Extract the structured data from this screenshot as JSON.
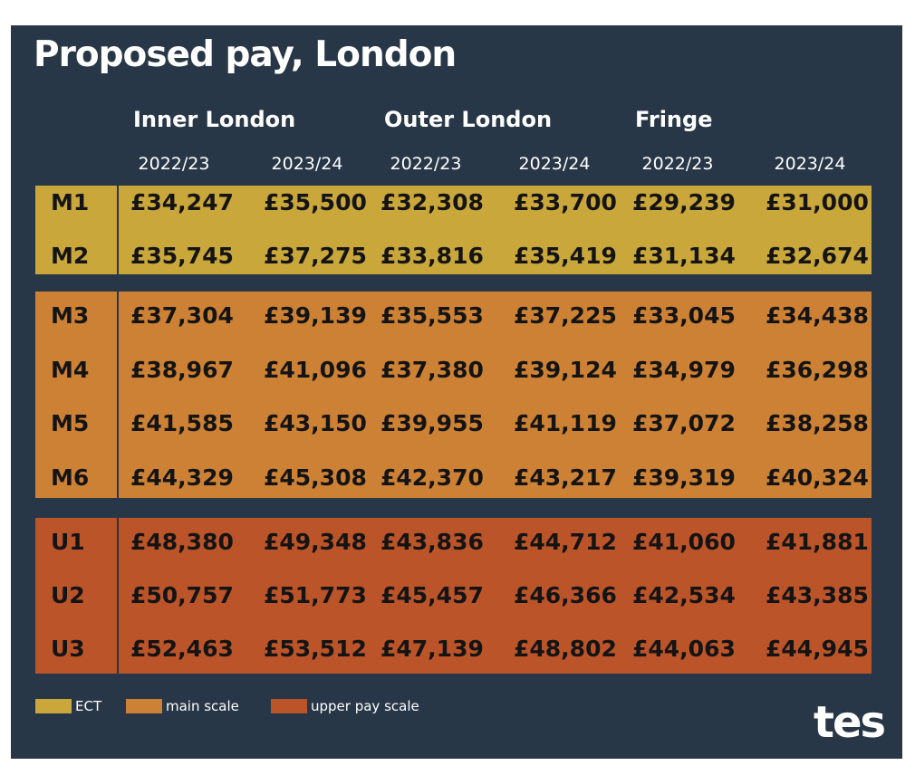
{
  "chart_data": {
    "type": "table",
    "title": "Proposed pay, London",
    "regions": [
      "Inner London",
      "Outer London",
      "Fringe"
    ],
    "years": [
      "2022/23",
      "2023/24",
      "2022/23",
      "2023/24",
      "2022/23",
      "2023/24"
    ],
    "rows": [
      {
        "label": "M1",
        "band": "ect",
        "values": [
          "£34,247",
          "£35,500",
          "£32,308",
          "£33,700",
          "£29,239",
          "£31,000"
        ]
      },
      {
        "label": "M2",
        "band": "ect",
        "values": [
          "£35,745",
          "£37,275",
          "£33,816",
          "£35,419",
          "£31,134",
          "£32,674"
        ]
      },
      {
        "label": "M3",
        "band": "main",
        "values": [
          "£37,304",
          "£39,139",
          "£35,553",
          "£37,225",
          "£33,045",
          "£34,438"
        ]
      },
      {
        "label": "M4",
        "band": "main",
        "values": [
          "£38,967",
          "£41,096",
          "£37,380",
          "£39,124",
          "£34,979",
          "£36,298"
        ]
      },
      {
        "label": "M5",
        "band": "main",
        "values": [
          "£41,585",
          "£43,150",
          "£39,955",
          "£41,119",
          "£37,072",
          "£38,258"
        ]
      },
      {
        "label": "M6",
        "band": "main",
        "values": [
          "£44,329",
          "£45,308",
          "£42,370",
          "£43,217",
          "£39,319",
          "£40,324"
        ]
      },
      {
        "label": "U1",
        "band": "upper",
        "values": [
          "£48,380",
          "£49,348",
          "£43,836",
          "£44,712",
          "£41,060",
          "£41,881"
        ]
      },
      {
        "label": "U2",
        "band": "upper",
        "values": [
          "£50,757",
          "£51,773",
          "£45,457",
          "£46,366",
          "£42,534",
          "£43,385"
        ]
      },
      {
        "label": "U3",
        "band": "upper",
        "values": [
          "£52,463",
          "£53,512",
          "£47,139",
          "£48,802",
          "£44,063",
          "£44,945"
        ]
      }
    ],
    "legend": [
      {
        "key": "ect",
        "label": "ECT",
        "color": "#c9a73a"
      },
      {
        "key": "main",
        "label": "main scale",
        "color": "#cd8134"
      },
      {
        "key": "upper",
        "label": "upper pay scale",
        "color": "#bb5429"
      }
    ]
  },
  "colors": {
    "background": "#283747",
    "ect": "#c9a73a",
    "main": "#cd8134",
    "upper": "#bb5429",
    "cell_text": "#141414"
  },
  "logo": "tes"
}
